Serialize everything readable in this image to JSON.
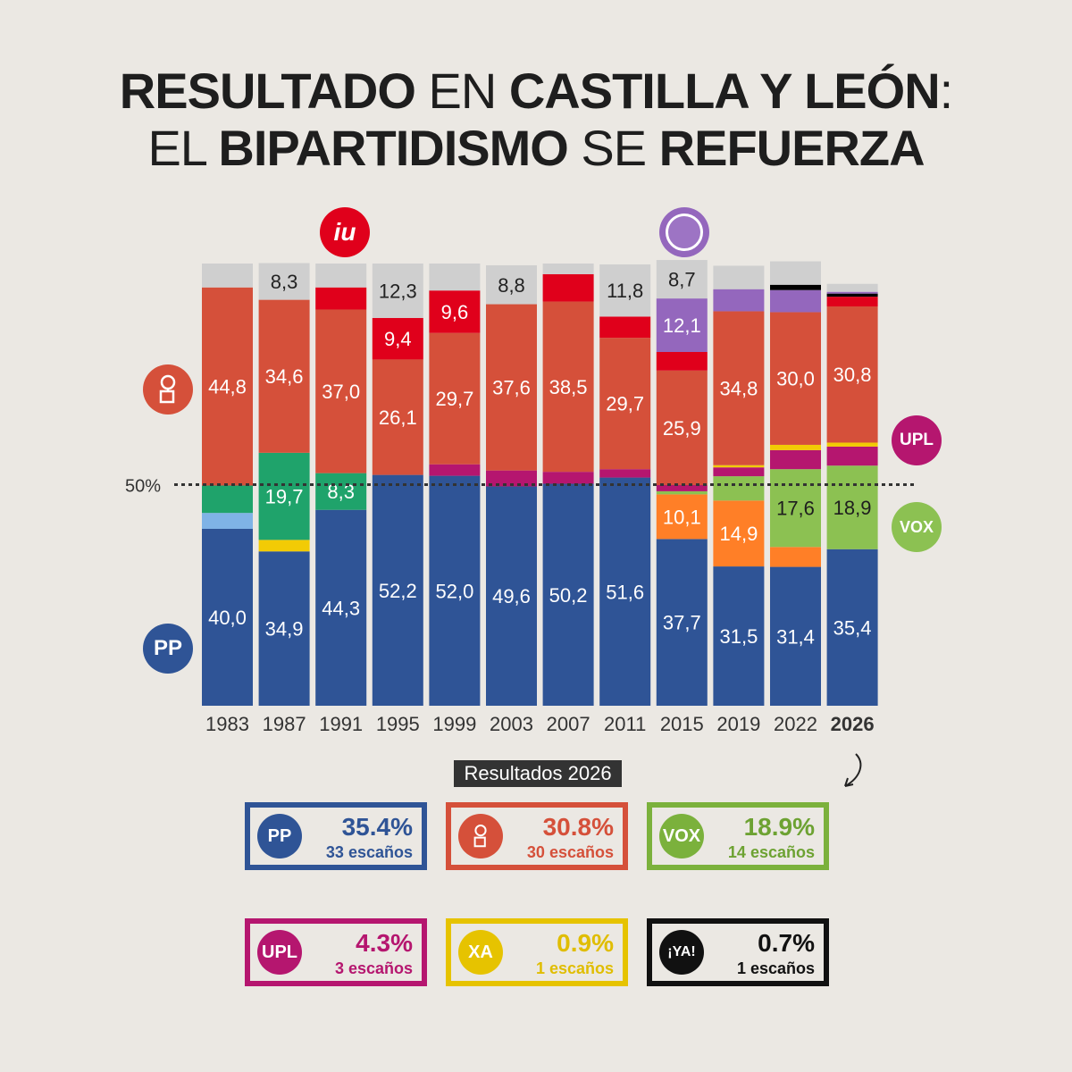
{
  "title": {
    "line1": [
      {
        "text": "RESULTADO",
        "bold": true
      },
      {
        "text": " EN ",
        "bold": false
      },
      {
        "text": "CASTILLA Y LEÓN",
        "bold": true
      },
      {
        "text": ":",
        "bold": false
      }
    ],
    "line2": [
      {
        "text": "EL ",
        "bold": false
      },
      {
        "text": "BIPARTIDISMO",
        "bold": true
      },
      {
        "text": " SE ",
        "bold": false
      },
      {
        "text": "REFUERZA",
        "bold": true
      }
    ]
  },
  "colors": {
    "PP": "#2f5496",
    "PSOE": "#d5503a",
    "Vox": "#8cc152",
    "Cs": "#ff7f27",
    "Podemos": "#9467bd",
    "IU": "#e0001b",
    "UPL": "#b5166f",
    "CDS": "#1fa36b",
    "AP_other": "#7fb3e6",
    "XA": "#f2cb05",
    "YA": "#000000",
    "Otros": "#cfcfcf",
    "background": "#ebe8e3"
  },
  "chart_data": {
    "type": "bar",
    "stacked": true,
    "categories": [
      "1983",
      "1987",
      "1991",
      "1995",
      "1999",
      "2003",
      "2007",
      "2011",
      "2015",
      "2019",
      "2022",
      "2026"
    ],
    "highlight_category": "2026",
    "reference_line": {
      "value": 50,
      "label": "50%"
    },
    "ylim": [
      0,
      100
    ],
    "series_order": [
      "PP",
      "AP_other",
      "XA",
      "CDS",
      "Cs",
      "Vox",
      "UPL",
      "PSOE",
      "Podemos",
      "IU",
      "YA",
      "Otros"
    ],
    "series": [
      {
        "key": "PP",
        "values": [
          40.0,
          34.9,
          44.3,
          52.2,
          52.0,
          49.6,
          50.2,
          51.6,
          37.7,
          31.5,
          31.4,
          35.4
        ],
        "labels": [
          true,
          true,
          true,
          true,
          true,
          true,
          true,
          true,
          true,
          true,
          true,
          true
        ]
      },
      {
        "key": "AP_other",
        "values": [
          3.6,
          0,
          0,
          0,
          0,
          0,
          0,
          0,
          0,
          0,
          0,
          0
        ]
      },
      {
        "key": "XA",
        "values": [
          0,
          2.6,
          0,
          0,
          0,
          0,
          0,
          0,
          0,
          0,
          0,
          0
        ]
      },
      {
        "key": "CDS",
        "values": [
          6.2,
          19.7,
          8.3,
          0,
          0,
          0,
          0,
          0,
          0,
          0,
          0,
          0
        ],
        "labels": [
          false,
          true,
          true,
          false,
          false,
          false,
          false,
          false,
          false,
          false,
          false,
          false
        ]
      },
      {
        "key": "Cs",
        "values": [
          0,
          0,
          0,
          0,
          0,
          0,
          0,
          0,
          10.1,
          14.9,
          4.5,
          0
        ],
        "labels": [
          false,
          false,
          false,
          false,
          false,
          false,
          false,
          false,
          true,
          true,
          false,
          false
        ]
      },
      {
        "key": "Vox",
        "values": [
          0,
          0,
          0,
          0,
          0,
          0,
          0,
          0,
          0.7,
          5.5,
          17.6,
          18.9
        ],
        "labels": [
          false,
          false,
          false,
          false,
          false,
          false,
          false,
          false,
          false,
          false,
          true,
          true
        ]
      },
      {
        "key": "UPL",
        "values": [
          0,
          0,
          0,
          0,
          2.6,
          3.6,
          2.7,
          1.9,
          1.4,
          2.0,
          4.3,
          4.3
        ]
      },
      {
        "key": "XA2",
        "colorKey": "XA",
        "values": [
          0,
          0,
          0,
          0,
          0,
          0,
          0,
          0,
          0,
          0.5,
          1.2,
          0.9
        ]
      },
      {
        "key": "PSOE",
        "values": [
          44.8,
          34.6,
          37.0,
          26.1,
          29.7,
          37.6,
          38.5,
          29.7,
          25.9,
          34.8,
          30.0,
          30.8
        ],
        "labels": [
          true,
          true,
          true,
          true,
          true,
          true,
          true,
          true,
          true,
          true,
          true,
          true
        ]
      },
      {
        "key": "IU",
        "values": [
          0,
          0,
          5.0,
          9.4,
          0,
          0,
          0,
          0,
          4.2,
          0,
          0,
          0
        ],
        "labels": [
          false,
          false,
          false,
          true,
          false,
          false,
          false,
          false,
          false,
          false,
          false,
          false
        ]
      },
      {
        "key": "Podemos",
        "values": [
          0,
          0,
          0,
          0,
          0,
          0,
          0,
          0,
          12.1,
          5.0,
          5.0,
          0
        ],
        "labels": [
          false,
          false,
          false,
          false,
          false,
          false,
          false,
          false,
          true,
          false,
          false,
          false
        ]
      },
      {
        "key": "IU2",
        "colorKey": "IU",
        "values": [
          0,
          0,
          0,
          0,
          9.6,
          0,
          6.2,
          4.8,
          0,
          0,
          0,
          2.2
        ],
        "labels": [
          false,
          false,
          false,
          false,
          true,
          false,
          false,
          false,
          false,
          false,
          false,
          false
        ]
      },
      {
        "key": "YA",
        "values": [
          0,
          0,
          0,
          0,
          0,
          0,
          0,
          0,
          0,
          0,
          1.2,
          0.7
        ]
      },
      {
        "key": "Podemos2",
        "colorKey": "Podemos",
        "values": [
          0,
          0,
          0,
          0,
          0,
          0,
          0,
          0,
          0,
          0,
          0,
          0.4
        ]
      },
      {
        "key": "Otros",
        "values": [
          5.4,
          8.3,
          5.4,
          12.3,
          6.1,
          8.8,
          2.4,
          11.8,
          8.7,
          5.3,
          5.3,
          1.8
        ],
        "labels": [
          false,
          true,
          false,
          true,
          false,
          true,
          false,
          true,
          true,
          false,
          false,
          false
        ]
      }
    ],
    "side_labels": {
      "pp": "PP",
      "upl": "UPL",
      "vox": "VOX",
      "iu": "iu"
    }
  },
  "results_2026": {
    "tag": "Resultados 2026",
    "cards": [
      {
        "party": "PP",
        "logo": "PP",
        "pct": "35.4%",
        "seats": "33 escaños",
        "color": "#2f5496",
        "text": "#2f5496"
      },
      {
        "party": "PSOE",
        "logo": "",
        "pct": "30.8%",
        "seats": "30 escaños",
        "color": "#d5503a",
        "text": "#d5503a"
      },
      {
        "party": "Vox",
        "logo": "VOX",
        "pct": "18.9%",
        "seats": "14 escaños",
        "color": "#7bb13c",
        "text": "#6da232"
      },
      {
        "party": "UPL",
        "logo": "UPL",
        "pct": "4.3%",
        "seats": "3 escaños",
        "color": "#b5166f",
        "text": "#b5166f"
      },
      {
        "party": "XA",
        "logo": "XA",
        "pct": "0.9%",
        "seats": "1 escaños",
        "color": "#e6c300",
        "text": "#e0bd00"
      },
      {
        "party": "YA",
        "logo": "¡YA!",
        "pct": "0.7%",
        "seats": "1 escaños",
        "color": "#111111",
        "text": "#111111"
      }
    ]
  }
}
